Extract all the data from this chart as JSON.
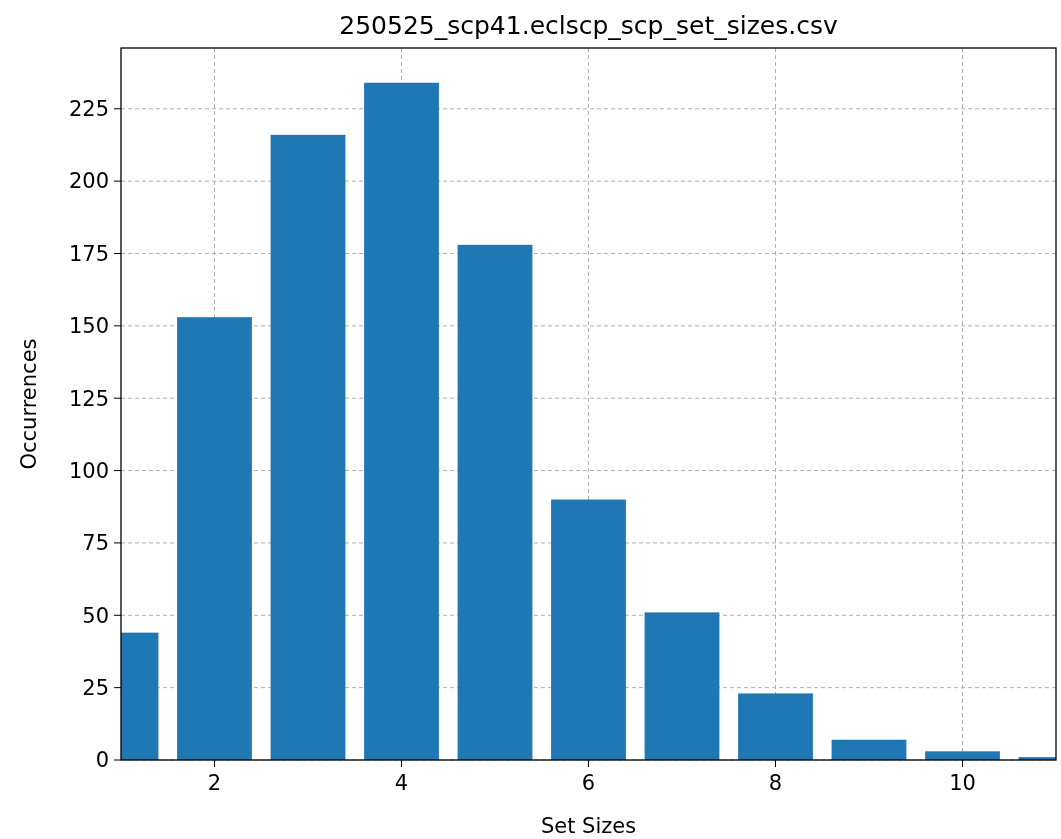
{
  "chart_data": {
    "type": "bar",
    "title": "250525_scp41.eclscp_scp_set_sizes.csv",
    "xlabel": "Set Sizes",
    "ylabel": "Occurrences",
    "x": [
      1,
      2,
      3,
      4,
      5,
      6,
      7,
      8,
      9,
      10,
      11
    ],
    "values": [
      44,
      153,
      216,
      234,
      178,
      90,
      51,
      23,
      7,
      3,
      1
    ],
    "color": "#1f77b4",
    "xlim": [
      1,
      11
    ],
    "xticks": [
      2,
      4,
      6,
      8,
      10
    ],
    "ylim": [
      0,
      246
    ],
    "yticks": [
      0,
      25,
      50,
      75,
      100,
      125,
      150,
      175,
      200,
      225
    ],
    "grid": true
  }
}
